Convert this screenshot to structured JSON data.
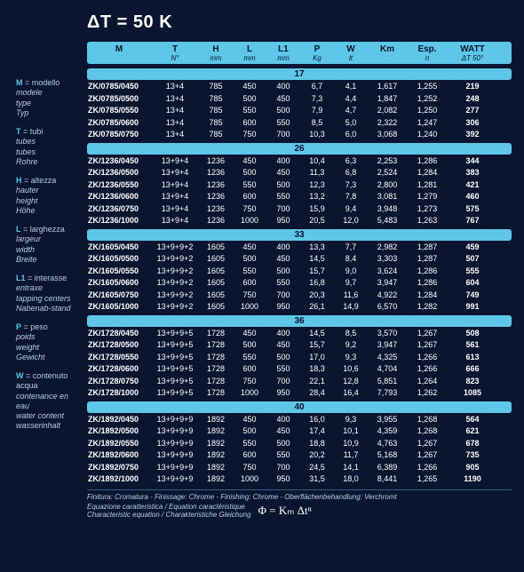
{
  "title": "ΔT = 50 K",
  "legend": [
    {
      "k": "M",
      "items": [
        "modello",
        "modele",
        "type",
        "Typ"
      ]
    },
    {
      "k": "T",
      "items": [
        "tubi",
        "tubes",
        "tubes",
        "Rohre"
      ]
    },
    {
      "k": "H",
      "items": [
        "altezza",
        "hauter",
        "height",
        "Höhe"
      ]
    },
    {
      "k": "L",
      "items": [
        "larghezza",
        "largeur",
        "width",
        "Breite"
      ]
    },
    {
      "k": "L1",
      "items": [
        "interasse",
        "entraxe",
        "tapping centers",
        "Nabenab-stand"
      ]
    },
    {
      "k": "P",
      "items": [
        "peso",
        "poids",
        "weight",
        "Gewicht"
      ]
    },
    {
      "k": "W",
      "items": [
        "contenuto acqua",
        "contenance en eau",
        "water content",
        "wasserinhalt"
      ]
    }
  ],
  "columns": [
    {
      "h": "M",
      "sub": ""
    },
    {
      "h": "T",
      "sub": "N°"
    },
    {
      "h": "H",
      "sub": "mm"
    },
    {
      "h": "L",
      "sub": "mm"
    },
    {
      "h": "L1",
      "sub": "mm"
    },
    {
      "h": "P",
      "sub": "Kg"
    },
    {
      "h": "W",
      "sub": "lt"
    },
    {
      "h": "Km",
      "sub": ""
    },
    {
      "h": "Esp.",
      "sub": "n"
    },
    {
      "h": "WATT",
      "sub": "ΔT 50°"
    }
  ],
  "groups": [
    {
      "label": "17",
      "rows": [
        [
          "ZK/0785/0450",
          "13+4",
          "785",
          "450",
          "400",
          "6,7",
          "4,1",
          "1,617",
          "1,255",
          "219"
        ],
        [
          "ZK/0785/0500",
          "13+4",
          "785",
          "500",
          "450",
          "7,3",
          "4,4",
          "1,847",
          "1,252",
          "248"
        ],
        [
          "ZK/0785/0550",
          "13+4",
          "785",
          "550",
          "500",
          "7,9",
          "4,7",
          "2,082",
          "1,250",
          "277"
        ],
        [
          "ZK/0785/0600",
          "13+4",
          "785",
          "600",
          "550",
          "8,5",
          "5,0",
          "2,322",
          "1,247",
          "306"
        ],
        [
          "ZK/0785/0750",
          "13+4",
          "785",
          "750",
          "700",
          "10,3",
          "6,0",
          "3,068",
          "1,240",
          "392"
        ]
      ]
    },
    {
      "label": "26",
      "rows": [
        [
          "ZK/1236/0450",
          "13+9+4",
          "1236",
          "450",
          "400",
          "10,4",
          "6,3",
          "2,253",
          "1,286",
          "344"
        ],
        [
          "ZK/1236/0500",
          "13+9+4",
          "1236",
          "500",
          "450",
          "11,3",
          "6,8",
          "2,524",
          "1,284",
          "383"
        ],
        [
          "ZK/1236/0550",
          "13+9+4",
          "1236",
          "550",
          "500",
          "12,3",
          "7,3",
          "2,800",
          "1,281",
          "421"
        ],
        [
          "ZK/1236/0600",
          "13+9+4",
          "1236",
          "600",
          "550",
          "13,2",
          "7,8",
          "3,081",
          "1,279",
          "460"
        ],
        [
          "ZK/1236/0750",
          "13+9+4",
          "1236",
          "750",
          "700",
          "15,9",
          "9,4",
          "3,948",
          "1,273",
          "575"
        ],
        [
          "ZK/1236/1000",
          "13+9+4",
          "1236",
          "1000",
          "950",
          "20,5",
          "12,0",
          "5,483",
          "1,263",
          "767"
        ]
      ]
    },
    {
      "label": "33",
      "rows": [
        [
          "ZK/1605/0450",
          "13+9+9+2",
          "1605",
          "450",
          "400",
          "13,3",
          "7,7",
          "2,982",
          "1,287",
          "459"
        ],
        [
          "ZK/1605/0500",
          "13+9+9+2",
          "1605",
          "500",
          "450",
          "14,5",
          "8,4",
          "3,303",
          "1,287",
          "507"
        ],
        [
          "ZK/1605/0550",
          "13+9+9+2",
          "1605",
          "550",
          "500",
          "15,7",
          "9,0",
          "3,624",
          "1,286",
          "555"
        ],
        [
          "ZK/1605/0600",
          "13+9+9+2",
          "1605",
          "600",
          "550",
          "16,8",
          "9,7",
          "3,947",
          "1,286",
          "604"
        ],
        [
          "ZK/1605/0750",
          "13+9+9+2",
          "1605",
          "750",
          "700",
          "20,3",
          "11,6",
          "4,922",
          "1,284",
          "749"
        ],
        [
          "ZK/1605/1000",
          "13+9+9+2",
          "1605",
          "1000",
          "950",
          "26,1",
          "14,9",
          "6,570",
          "1,282",
          "991"
        ]
      ]
    },
    {
      "label": "36",
      "rows": [
        [
          "ZK/1728/0450",
          "13+9+9+5",
          "1728",
          "450",
          "400",
          "14,5",
          "8,5",
          "3,570",
          "1,267",
          "508"
        ],
        [
          "ZK/1728/0500",
          "13+9+9+5",
          "1728",
          "500",
          "450",
          "15,7",
          "9,2",
          "3,947",
          "1,267",
          "561"
        ],
        [
          "ZK/1728/0550",
          "13+9+9+5",
          "1728",
          "550",
          "500",
          "17,0",
          "9,3",
          "4,325",
          "1,266",
          "613"
        ],
        [
          "ZK/1728/0600",
          "13+9+9+5",
          "1728",
          "600",
          "550",
          "18,3",
          "10,6",
          "4,704",
          "1,266",
          "666"
        ],
        [
          "ZK/1728/0750",
          "13+9+9+5",
          "1728",
          "750",
          "700",
          "22,1",
          "12,8",
          "5,851",
          "1,264",
          "823"
        ],
        [
          "ZK/1728/1000",
          "13+9+9+5",
          "1728",
          "1000",
          "950",
          "28,4",
          "16,4",
          "7,793",
          "1,262",
          "1085"
        ]
      ]
    },
    {
      "label": "40",
      "rows": [
        [
          "ZK/1892/0450",
          "13+9+9+9",
          "1892",
          "450",
          "400",
          "16,0",
          "9,3",
          "3,955",
          "1,268",
          "564"
        ],
        [
          "ZK/1892/0500",
          "13+9+9+9",
          "1892",
          "500",
          "450",
          "17,4",
          "10,1",
          "4,359",
          "1,268",
          "621"
        ],
        [
          "ZK/1892/0550",
          "13+9+9+9",
          "1892",
          "550",
          "500",
          "18,8",
          "10,9",
          "4,763",
          "1,267",
          "678"
        ],
        [
          "ZK/1892/0600",
          "13+9+9+9",
          "1892",
          "600",
          "550",
          "20,2",
          "11,7",
          "5,168",
          "1,267",
          "735"
        ],
        [
          "ZK/1892/0750",
          "13+9+9+9",
          "1892",
          "750",
          "700",
          "24,5",
          "14,1",
          "6,389",
          "1,266",
          "905"
        ],
        [
          "ZK/1892/1000",
          "13+9+9+9",
          "1892",
          "1000",
          "950",
          "31,5",
          "18,0",
          "8,441",
          "1,265",
          "1190"
        ]
      ]
    }
  ],
  "footnote": "Finitura: Cromatura - Finissage: Chrome - Finishing: Chrome - Oberflächenbehandlung: Verchromt",
  "eq_label": "Equazione caratteristica / Equation caractéristique\nCharacteristic equation / Charakteristiche Gleichung",
  "eq": "Φ = Kₘ Δtⁿ"
}
